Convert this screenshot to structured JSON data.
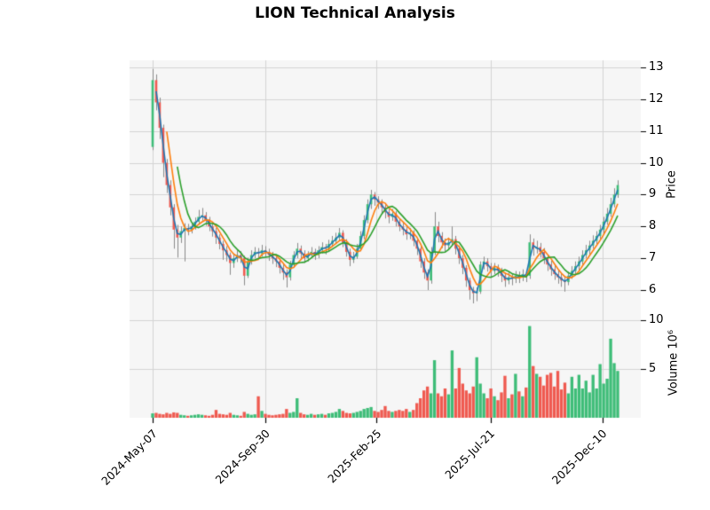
{
  "title": "LION Technical Analysis",
  "colors": {
    "up": "#3ebd78",
    "down": "#ef5a50",
    "wick": "#8a8a8a",
    "ma_short": "#1f77b4",
    "ma_mid": "#ff7f0e",
    "ma_long": "#2ca02c",
    "grid": "#d4d4d4",
    "plot_bg": "#f6f6f6",
    "tick_mark": "#000000",
    "text": "#000000"
  },
  "chart_data": {
    "type": "candlestick_with_volume",
    "title": "LION Technical Analysis",
    "price_axis": {
      "label": "Price",
      "ticks": [
        13,
        12,
        11,
        10,
        9,
        8,
        7,
        6
      ],
      "range": [
        5.4,
        13.2
      ]
    },
    "volume_axis": {
      "label": "Volume 10⁶",
      "ticks": [
        10,
        5
      ],
      "unit": "millions",
      "range": [
        0,
        11.3
      ]
    },
    "x_axis": {
      "ticks": [
        {
          "label": "2024-May-07",
          "pos": 0
        },
        {
          "label": "2024-Sep-30",
          "pos": 32.0
        },
        {
          "label": "2025-Feb-25",
          "pos": 63.6
        },
        {
          "label": "2025-Jul-21",
          "pos": 95.9
        },
        {
          "label": "2025-Dec-10",
          "pos": 127.7
        }
      ]
    },
    "moving_averages": [
      {
        "name": "ma-short",
        "window": 2,
        "color_key": "ma_short"
      },
      {
        "name": "ma-mid",
        "window": 5,
        "color_key": "ma_mid"
      },
      {
        "name": "ma-long",
        "window": 8,
        "color_key": "ma_long"
      }
    ],
    "candles": {
      "columns": [
        "open",
        "high",
        "low",
        "close",
        "volume_millions"
      ],
      "rows": [
        [
          10.5,
          12.95,
          10.4,
          12.6,
          0.45
        ],
        [
          12.6,
          12.78,
          11.65,
          11.9,
          0.5
        ],
        [
          11.9,
          12.05,
          10.75,
          11.1,
          0.4
        ],
        [
          11.1,
          11.2,
          9.55,
          10.0,
          0.35
        ],
        [
          10.0,
          10.12,
          9.05,
          9.3,
          0.5
        ],
        [
          9.3,
          9.45,
          8.35,
          8.6,
          0.4
        ],
        [
          8.6,
          8.7,
          7.3,
          7.9,
          0.55
        ],
        [
          7.9,
          8.05,
          7.02,
          7.65,
          0.5
        ],
        [
          7.65,
          8.0,
          7.48,
          7.85,
          0.3
        ],
        [
          7.85,
          8.1,
          6.9,
          7.95,
          0.25
        ],
        [
          7.95,
          8.08,
          7.72,
          7.9,
          0.2
        ],
        [
          7.9,
          8.12,
          7.78,
          8.0,
          0.25
        ],
        [
          8.0,
          8.28,
          7.9,
          8.15,
          0.3
        ],
        [
          8.15,
          8.52,
          8.05,
          8.3,
          0.35
        ],
        [
          8.3,
          8.58,
          8.18,
          8.35,
          0.3
        ],
        [
          8.35,
          8.45,
          8.02,
          8.2,
          0.25
        ],
        [
          8.2,
          8.3,
          7.85,
          8.0,
          0.2
        ],
        [
          8.0,
          8.1,
          7.68,
          7.85,
          0.3
        ],
        [
          7.85,
          7.95,
          7.45,
          7.65,
          0.8
        ],
        [
          7.65,
          7.75,
          7.28,
          7.45,
          0.4
        ],
        [
          7.45,
          7.55,
          6.95,
          7.25,
          0.35
        ],
        [
          7.25,
          7.38,
          6.9,
          7.1,
          0.3
        ],
        [
          7.1,
          7.18,
          6.48,
          6.85,
          0.5
        ],
        [
          6.85,
          7.15,
          6.7,
          7.0,
          0.3
        ],
        [
          7.0,
          7.25,
          6.88,
          7.1,
          0.25
        ],
        [
          7.1,
          7.22,
          6.85,
          7.0,
          0.2
        ],
        [
          7.0,
          7.08,
          6.15,
          6.45,
          0.6
        ],
        [
          6.45,
          7.02,
          6.38,
          6.9,
          0.4
        ],
        [
          6.9,
          7.25,
          6.8,
          7.1,
          0.3
        ],
        [
          7.1,
          7.35,
          7.0,
          7.2,
          0.35
        ],
        [
          7.2,
          7.32,
          6.98,
          7.15,
          2.2
        ],
        [
          7.15,
          7.42,
          7.05,
          7.25,
          0.7
        ],
        [
          7.25,
          7.38,
          7.02,
          7.2,
          0.4
        ],
        [
          7.2,
          7.3,
          6.92,
          7.1,
          0.3
        ],
        [
          7.1,
          7.2,
          6.82,
          7.0,
          0.25
        ],
        [
          7.0,
          7.12,
          6.72,
          6.9,
          0.3
        ],
        [
          6.9,
          7.0,
          6.52,
          6.7,
          0.35
        ],
        [
          6.7,
          6.82,
          6.32,
          6.55,
          0.4
        ],
        [
          6.55,
          6.65,
          6.08,
          6.4,
          0.9
        ],
        [
          6.4,
          6.92,
          6.3,
          6.8,
          0.5
        ],
        [
          6.8,
          7.22,
          6.7,
          7.1,
          0.6
        ],
        [
          7.1,
          7.48,
          7.0,
          7.3,
          2.0
        ],
        [
          7.3,
          7.4,
          6.98,
          7.15,
          0.5
        ],
        [
          7.15,
          7.25,
          6.85,
          7.0,
          0.35
        ],
        [
          7.0,
          7.22,
          6.9,
          7.1,
          0.3
        ],
        [
          7.1,
          7.35,
          7.02,
          7.2,
          0.4
        ],
        [
          7.2,
          7.3,
          6.95,
          7.1,
          0.3
        ],
        [
          7.1,
          7.38,
          7.0,
          7.25,
          0.35
        ],
        [
          7.25,
          7.5,
          7.15,
          7.35,
          0.4
        ],
        [
          7.35,
          7.45,
          7.12,
          7.3,
          0.3
        ],
        [
          7.3,
          7.58,
          7.2,
          7.45,
          0.45
        ],
        [
          7.45,
          7.7,
          7.35,
          7.55,
          0.5
        ],
        [
          7.55,
          7.8,
          7.45,
          7.65,
          0.6
        ],
        [
          7.65,
          7.95,
          7.55,
          7.8,
          0.9
        ],
        [
          7.8,
          7.88,
          7.35,
          7.5,
          0.7
        ],
        [
          7.5,
          7.6,
          7.05,
          7.2,
          0.5
        ],
        [
          7.2,
          7.3,
          6.75,
          6.95,
          0.45
        ],
        [
          6.95,
          7.2,
          6.85,
          7.05,
          0.5
        ],
        [
          7.05,
          7.45,
          6.98,
          7.3,
          0.6
        ],
        [
          7.3,
          7.85,
          7.22,
          7.7,
          0.7
        ],
        [
          7.7,
          8.35,
          7.6,
          8.2,
          0.9
        ],
        [
          8.2,
          8.85,
          8.1,
          8.7,
          1.0
        ],
        [
          8.7,
          9.15,
          8.55,
          9.0,
          1.1
        ],
        [
          9.0,
          9.08,
          8.65,
          8.85,
          0.7
        ],
        [
          8.85,
          8.95,
          8.55,
          8.75,
          0.6
        ],
        [
          8.75,
          8.85,
          8.4,
          8.6,
          0.8
        ],
        [
          8.6,
          8.7,
          8.25,
          8.45,
          1.2
        ],
        [
          8.45,
          8.55,
          8.1,
          8.3,
          0.7
        ],
        [
          8.3,
          8.55,
          8.18,
          8.4,
          0.6
        ],
        [
          8.4,
          8.48,
          8.0,
          8.15,
          0.7
        ],
        [
          8.15,
          8.25,
          7.85,
          8.0,
          0.8
        ],
        [
          8.0,
          8.12,
          7.72,
          7.9,
          0.7
        ],
        [
          7.9,
          8.0,
          7.58,
          7.75,
          0.9
        ],
        [
          7.75,
          7.95,
          7.6,
          7.8,
          0.6
        ],
        [
          7.8,
          7.88,
          7.38,
          7.55,
          0.8
        ],
        [
          7.55,
          7.62,
          7.1,
          7.3,
          1.5
        ],
        [
          7.3,
          7.38,
          6.7,
          6.9,
          2.0
        ],
        [
          6.9,
          7.0,
          6.35,
          6.55,
          2.8
        ],
        [
          6.55,
          6.65,
          6.0,
          6.3,
          3.2
        ],
        [
          6.3,
          7.35,
          6.2,
          7.2,
          2.5
        ],
        [
          7.2,
          8.45,
          7.1,
          8.0,
          5.9
        ],
        [
          8.0,
          8.15,
          7.5,
          7.7,
          2.5
        ],
        [
          7.7,
          7.82,
          7.32,
          7.5,
          2.2
        ],
        [
          7.5,
          7.62,
          7.22,
          7.4,
          3.0
        ],
        [
          7.4,
          7.65,
          7.28,
          7.5,
          2.4
        ],
        [
          7.5,
          8.0,
          7.4,
          7.6,
          6.9
        ],
        [
          7.6,
          7.7,
          7.12,
          7.3,
          3.0
        ],
        [
          7.3,
          7.4,
          6.82,
          7.0,
          5.1
        ],
        [
          7.0,
          7.1,
          6.5,
          6.7,
          3.5
        ],
        [
          6.7,
          6.78,
          6.1,
          6.3,
          2.8
        ],
        [
          6.3,
          6.38,
          5.7,
          6.0,
          2.5
        ],
        [
          6.0,
          6.1,
          5.58,
          5.9,
          3.2
        ],
        [
          5.9,
          6.08,
          5.65,
          5.95,
          6.2
        ],
        [
          5.95,
          6.9,
          5.88,
          6.8,
          3.5
        ],
        [
          6.8,
          7.05,
          6.65,
          6.9,
          2.5
        ],
        [
          6.9,
          7.0,
          6.58,
          6.75,
          2.0
        ],
        [
          6.75,
          6.85,
          6.42,
          6.6,
          3.0
        ],
        [
          6.6,
          6.85,
          6.5,
          6.7,
          2.2
        ],
        [
          6.7,
          6.8,
          6.42,
          6.6,
          1.8
        ],
        [
          6.6,
          6.7,
          6.25,
          6.45,
          2.6
        ],
        [
          6.45,
          6.55,
          6.1,
          6.3,
          4.3
        ],
        [
          6.3,
          6.55,
          6.18,
          6.4,
          2.0
        ],
        [
          6.4,
          6.52,
          6.15,
          6.35,
          2.4
        ],
        [
          6.35,
          6.6,
          6.22,
          6.45,
          4.5
        ],
        [
          6.45,
          6.58,
          6.22,
          6.4,
          2.7
        ],
        [
          6.4,
          6.65,
          6.28,
          6.5,
          2.2
        ],
        [
          6.5,
          6.62,
          6.25,
          6.45,
          3.1
        ],
        [
          6.45,
          7.75,
          6.35,
          7.5,
          9.4
        ],
        [
          7.5,
          7.62,
          7.08,
          7.3,
          5.3
        ],
        [
          7.3,
          7.55,
          7.15,
          7.35,
          4.5
        ],
        [
          7.35,
          7.48,
          7.02,
          7.2,
          4.2
        ],
        [
          7.2,
          7.32,
          6.82,
          7.0,
          3.3
        ],
        [
          7.0,
          7.1,
          6.6,
          6.8,
          4.4
        ],
        [
          6.8,
          6.92,
          6.45,
          6.65,
          4.6
        ],
        [
          6.65,
          6.78,
          6.32,
          6.5,
          3.2
        ],
        [
          6.5,
          6.62,
          6.2,
          6.4,
          4.8
        ],
        [
          6.4,
          6.52,
          6.1,
          6.3,
          2.9
        ],
        [
          6.3,
          6.42,
          5.95,
          6.25,
          3.6
        ],
        [
          6.25,
          6.58,
          6.15,
          6.45,
          2.5
        ],
        [
          6.45,
          6.75,
          6.35,
          6.6,
          4.2
        ],
        [
          6.6,
          6.9,
          6.48,
          6.75,
          3.0
        ],
        [
          6.75,
          7.05,
          6.62,
          6.9,
          4.4
        ],
        [
          6.9,
          7.25,
          6.8,
          7.1,
          3.0
        ],
        [
          7.1,
          7.42,
          7.0,
          7.25,
          3.8
        ],
        [
          7.25,
          7.55,
          7.12,
          7.4,
          2.6
        ],
        [
          7.4,
          7.72,
          7.3,
          7.55,
          4.4
        ],
        [
          7.55,
          7.85,
          7.45,
          7.7,
          3.0
        ],
        [
          7.7,
          8.05,
          7.58,
          7.9,
          5.5
        ],
        [
          7.9,
          8.3,
          7.78,
          8.15,
          3.5
        ],
        [
          8.15,
          8.58,
          8.05,
          8.4,
          4.0
        ],
        [
          8.4,
          8.9,
          8.3,
          8.7,
          8.1
        ],
        [
          8.7,
          9.2,
          8.6,
          9.0,
          5.6
        ],
        [
          9.0,
          9.45,
          8.9,
          9.3,
          4.8
        ]
      ]
    }
  }
}
